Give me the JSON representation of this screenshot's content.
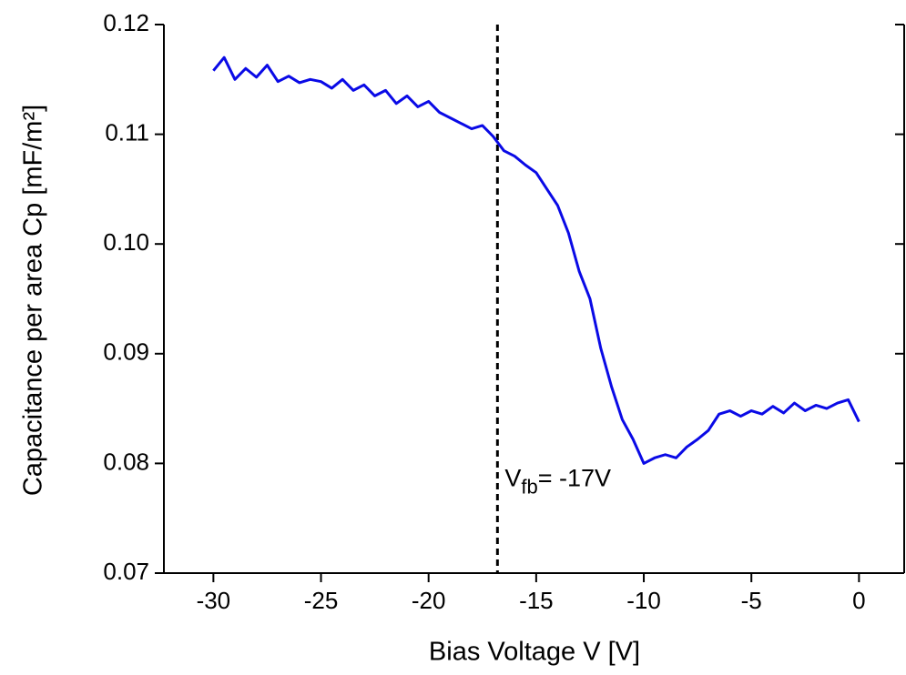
{
  "chart_data": {
    "type": "line",
    "x_label": "Bias Voltage V [V]",
    "y_label": "Capacitance per area Cp [mF/m²]",
    "x": [
      -30,
      -29.5,
      -29,
      -28.5,
      -28,
      -27.5,
      -27,
      -26.5,
      -26,
      -25.5,
      -25,
      -24.5,
      -24,
      -23.5,
      -23,
      -22.5,
      -22,
      -21.5,
      -21,
      -20.5,
      -20,
      -19.5,
      -19,
      -18.5,
      -18,
      -17.5,
      -17,
      -16.5,
      -16,
      -15.5,
      -15,
      -14.5,
      -14,
      -13.5,
      -13,
      -12.5,
      -12,
      -11.5,
      -11,
      -10.5,
      -10,
      -9.5,
      -9,
      -8.5,
      -8,
      -7.5,
      -7,
      -6.5,
      -6,
      -5.5,
      -5,
      -4.5,
      -4,
      -3.5,
      -3,
      -2.5,
      -2,
      -1.5,
      -1,
      -0.5,
      0
    ],
    "series": [
      {
        "color": "#0a0ae6",
        "values": [
          0.1158,
          0.117,
          0.115,
          0.116,
          0.1152,
          0.1163,
          0.1148,
          0.1153,
          0.1147,
          0.115,
          0.1148,
          0.1142,
          0.115,
          0.114,
          0.1145,
          0.1135,
          0.114,
          0.1128,
          0.1135,
          0.1125,
          0.113,
          0.112,
          0.1115,
          0.111,
          0.1105,
          0.1108,
          0.1098,
          0.1085,
          0.108,
          0.1072,
          0.1065,
          0.105,
          0.1035,
          0.101,
          0.0975,
          0.095,
          0.0905,
          0.087,
          0.084,
          0.0822,
          0.08,
          0.0805,
          0.0808,
          0.0805,
          0.0815,
          0.0822,
          0.083,
          0.0845,
          0.0848,
          0.0843,
          0.0848,
          0.0845,
          0.0852,
          0.0846,
          0.0855,
          0.0848,
          0.0853,
          0.085,
          0.0855,
          0.0858,
          0.0838
        ]
      }
    ],
    "xlim": [
      -32.3,
      2.1
    ],
    "ylim": [
      0.07,
      0.12
    ],
    "xticks": [
      -30,
      -25,
      -20,
      -15,
      -10,
      -5,
      0
    ],
    "yticks": [
      0.07,
      0.08,
      0.09,
      {
        "value": 0.1,
        "label": "0.10"
      },
      0.11,
      0.12
    ],
    "vline": {
      "x": -16.8,
      "color": "#000000"
    },
    "annotation": {
      "main": "V",
      "sub": "fb",
      "rest": "= -17V",
      "x": -16.8,
      "y": 0.0785
    }
  }
}
